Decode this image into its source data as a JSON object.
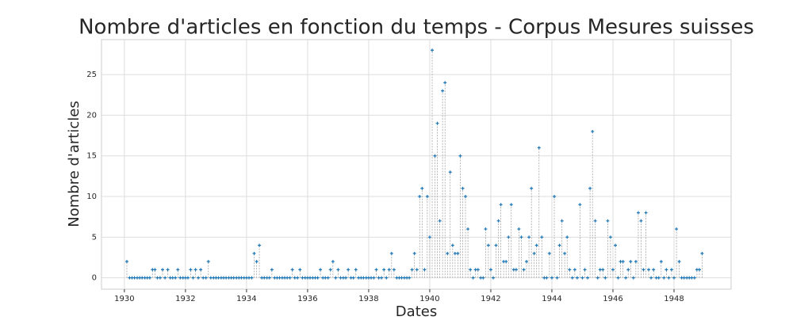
{
  "chart_data": {
    "type": "stem",
    "title": "Nombre d'articles en fonction du temps - Corpus Mesures suisses",
    "x_label": "Dates",
    "y_label": "Nombre d'articles",
    "x": [
      1930.08,
      1930.17,
      1930.25,
      1930.33,
      1930.42,
      1930.5,
      1930.58,
      1930.67,
      1930.75,
      1930.83,
      1930.92,
      1931,
      1931.08,
      1931.17,
      1931.25,
      1931.33,
      1931.42,
      1931.5,
      1931.58,
      1931.67,
      1931.75,
      1931.83,
      1931.92,
      1932,
      1932.08,
      1932.17,
      1932.25,
      1932.33,
      1932.42,
      1932.5,
      1932.58,
      1932.67,
      1932.75,
      1932.83,
      1932.92,
      1933,
      1933.08,
      1933.17,
      1933.25,
      1933.33,
      1933.42,
      1933.5,
      1933.58,
      1933.67,
      1933.75,
      1933.83,
      1933.92,
      1934,
      1934.08,
      1934.17,
      1934.25,
      1934.33,
      1934.42,
      1934.5,
      1934.58,
      1934.67,
      1934.75,
      1934.83,
      1934.92,
      1935,
      1935.08,
      1935.17,
      1935.25,
      1935.33,
      1935.42,
      1935.5,
      1935.58,
      1935.67,
      1935.75,
      1935.83,
      1935.92,
      1936,
      1936.08,
      1936.17,
      1936.25,
      1936.33,
      1936.42,
      1936.5,
      1936.58,
      1936.67,
      1936.75,
      1936.83,
      1936.92,
      1937,
      1937.08,
      1937.17,
      1937.25,
      1937.33,
      1937.42,
      1937.5,
      1937.58,
      1937.67,
      1937.75,
      1937.83,
      1937.92,
      1938,
      1938.08,
      1938.17,
      1938.25,
      1938.33,
      1938.42,
      1938.5,
      1938.58,
      1938.67,
      1938.75,
      1938.83,
      1938.92,
      1939,
      1939.08,
      1939.17,
      1939.25,
      1939.33,
      1939.42,
      1939.5,
      1939.58,
      1939.67,
      1939.75,
      1939.83,
      1939.92,
      1940,
      1940.08,
      1940.17,
      1940.25,
      1940.33,
      1940.42,
      1940.5,
      1940.58,
      1940.67,
      1940.75,
      1940.83,
      1940.92,
      1941,
      1941.08,
      1941.17,
      1941.25,
      1941.33,
      1941.42,
      1941.5,
      1941.58,
      1941.67,
      1941.75,
      1941.83,
      1941.92,
      1942,
      1942.08,
      1942.17,
      1942.25,
      1942.33,
      1942.42,
      1942.5,
      1942.58,
      1942.67,
      1942.75,
      1942.83,
      1942.92,
      1943,
      1943.08,
      1943.17,
      1943.25,
      1943.33,
      1943.42,
      1943.5,
      1943.58,
      1943.67,
      1943.75,
      1943.83,
      1943.92,
      1944,
      1944.08,
      1944.17,
      1944.25,
      1944.33,
      1944.42,
      1944.5,
      1944.58,
      1944.67,
      1944.75,
      1944.83,
      1944.92,
      1945,
      1945.08,
      1945.17,
      1945.25,
      1945.33,
      1945.42,
      1945.5,
      1945.58,
      1945.67,
      1945.75,
      1945.83,
      1945.92,
      1946,
      1946.08,
      1946.17,
      1946.25,
      1946.33,
      1946.42,
      1946.5,
      1946.58,
      1946.67,
      1946.75,
      1946.83,
      1946.92,
      1947,
      1947.08,
      1947.17,
      1947.25,
      1947.33,
      1947.42,
      1947.5,
      1947.58,
      1947.67,
      1947.75,
      1947.83,
      1947.92,
      1948,
      1948.08,
      1948.17,
      1948.25,
      1948.33,
      1948.42,
      1948.5,
      1948.58,
      1948.67,
      1948.75,
      1948.83,
      1948.92
    ],
    "values": [
      2,
      0,
      0,
      0,
      0,
      0,
      0,
      0,
      0,
      0,
      1,
      1,
      0,
      0,
      1,
      0,
      1,
      0,
      0,
      0,
      1,
      0,
      0,
      0,
      0,
      1,
      0,
      1,
      0,
      1,
      0,
      0,
      2,
      0,
      0,
      0,
      0,
      0,
      0,
      0,
      0,
      0,
      0,
      0,
      0,
      0,
      0,
      0,
      0,
      0,
      3,
      2,
      4,
      0,
      0,
      0,
      0,
      1,
      0,
      0,
      0,
      0,
      0,
      0,
      0,
      1,
      0,
      0,
      1,
      0,
      0,
      0,
      0,
      0,
      0,
      0,
      1,
      0,
      0,
      0,
      1,
      2,
      0,
      1,
      0,
      0,
      0,
      1,
      0,
      0,
      1,
      0,
      0,
      0,
      0,
      0,
      0,
      0,
      1,
      0,
      0,
      1,
      0,
      1,
      3,
      1,
      0,
      0,
      0,
      0,
      0,
      0,
      1,
      3,
      1,
      10,
      11,
      1,
      10,
      5,
      28,
      15,
      19,
      7,
      23,
      24,
      3,
      13,
      4,
      3,
      3,
      15,
      11,
      10,
      6,
      1,
      0,
      1,
      1,
      0,
      0,
      6,
      4,
      1,
      0,
      4,
      7,
      9,
      2,
      2,
      5,
      9,
      1,
      1,
      6,
      5,
      1,
      2,
      5,
      11,
      3,
      4,
      16,
      5,
      0,
      0,
      3,
      0,
      10,
      0,
      4,
      7,
      3,
      5,
      1,
      0,
      1,
      0,
      9,
      0,
      1,
      0,
      11,
      18,
      7,
      0,
      1,
      1,
      0,
      7,
      5,
      1,
      4,
      0,
      2,
      2,
      0,
      1,
      2,
      0,
      2,
      8,
      7,
      1,
      8,
      1,
      0,
      1,
      0,
      0,
      2,
      0,
      1,
      0,
      1,
      0,
      6,
      2,
      0,
      0,
      0,
      0,
      0,
      0,
      1,
      1,
      3
    ],
    "color": "#1f77b4",
    "xlim": [
      1929.25,
      1949.87
    ],
    "xticks": [
      1930,
      1932,
      1934,
      1936,
      1938,
      1940,
      1942,
      1944,
      1946,
      1948
    ],
    "ylim": [
      -1.4,
      29.3
    ],
    "yticks": [
      0,
      5,
      10,
      15,
      20,
      25
    ],
    "grid": true
  }
}
